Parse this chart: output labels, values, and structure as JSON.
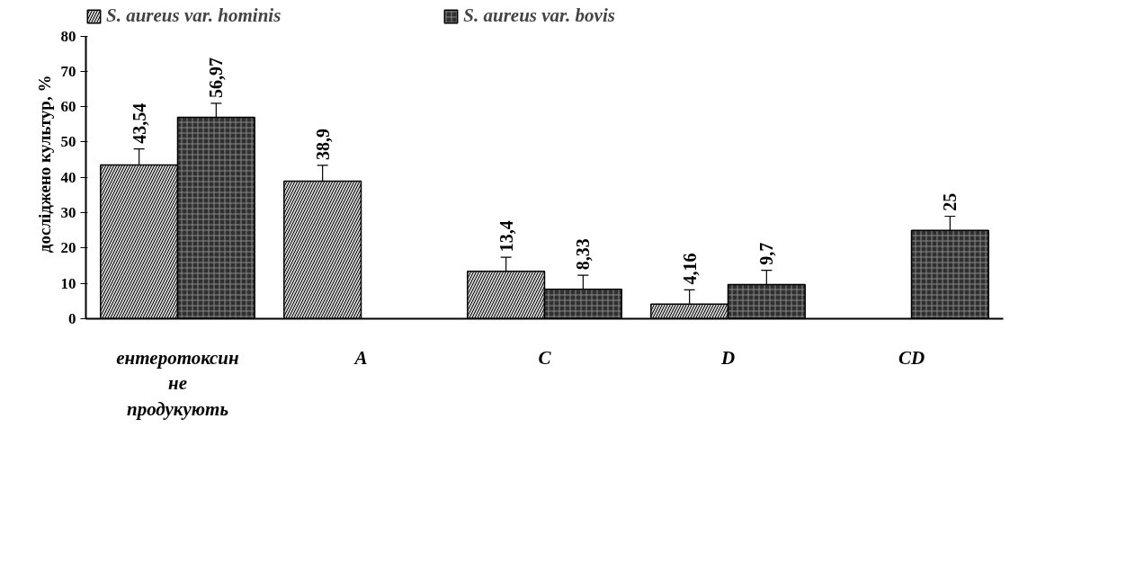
{
  "chart_data": {
    "type": "bar",
    "ylabel": "досліджено культур,  %",
    "categories": [
      "ентеротоксин не продукують",
      "A",
      "C",
      "D",
      "CD"
    ],
    "series": [
      {
        "name": "S. aureus var. hominis",
        "color": "#d0d0d0",
        "values": [
          43.54,
          38.9,
          13.4,
          4.16,
          null
        ],
        "errors": [
          4.5,
          4.5,
          4,
          4,
          null
        ],
        "value_labels": [
          "43,54",
          "38,9",
          "13,4",
          "4,16",
          null
        ]
      },
      {
        "name": "S. aureus var. bovis",
        "color": "#303030",
        "values": [
          56.97,
          null,
          8.33,
          9.7,
          25
        ],
        "errors": [
          4,
          null,
          4,
          4,
          4
        ],
        "value_labels": [
          "56,97",
          null,
          "8,33",
          "9,7",
          "25"
        ]
      }
    ],
    "ylim": [
      0,
      80
    ],
    "yticks": [
      0,
      10,
      20,
      30,
      40,
      50,
      60,
      70,
      80
    ],
    "grid": false,
    "legend": "top left"
  }
}
